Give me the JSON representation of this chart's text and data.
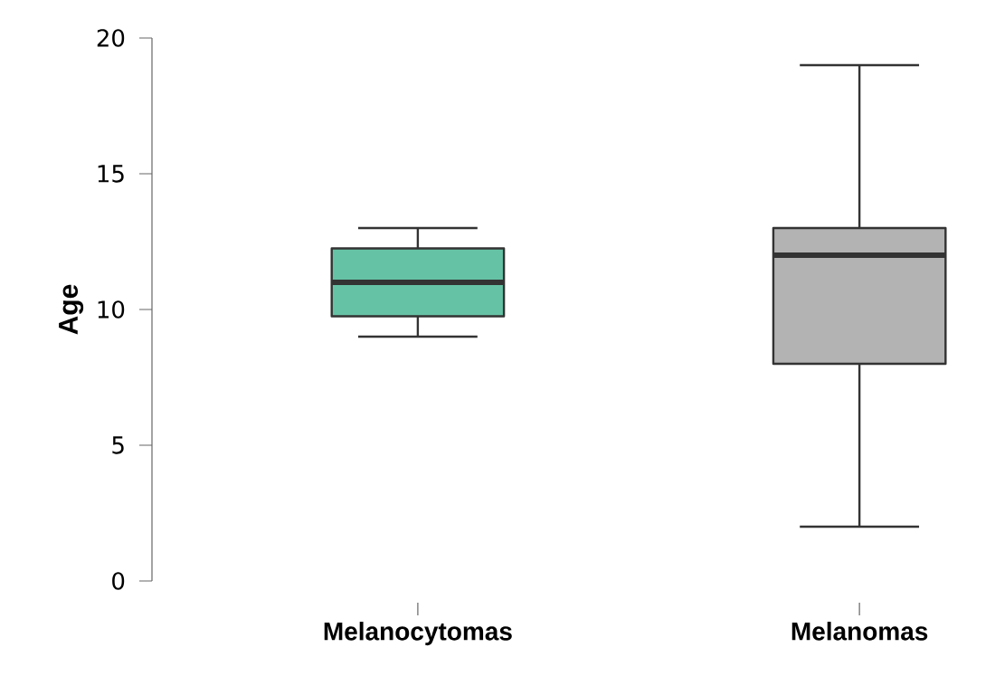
{
  "chart_data": {
    "type": "box",
    "ylabel": "Age",
    "categories": [
      "Melanocytomas",
      "Melanomas"
    ],
    "boxes": [
      {
        "low": 9,
        "q1": 9.75,
        "median": 11,
        "q3": 12.25,
        "high": 13
      },
      {
        "low": 2,
        "q1": 8,
        "median": 12,
        "q3": 13,
        "high": 19
      }
    ],
    "colors": [
      "#66c2a5",
      "#b3b3b3"
    ],
    "ylim": [
      0,
      20
    ],
    "yticks": [
      0,
      5,
      10,
      15,
      20
    ],
    "grid": false
  }
}
